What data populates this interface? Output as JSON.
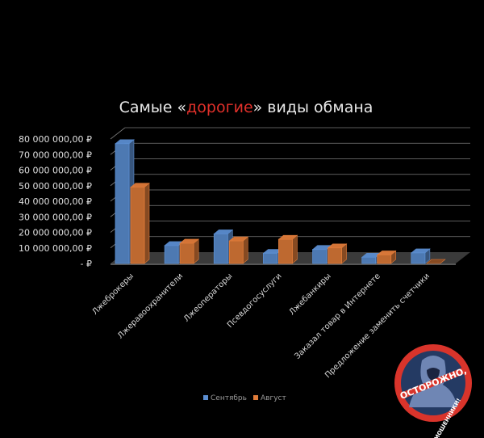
{
  "chart_data": {
    "type": "bar",
    "title": "Самые «дорогие» виды обмана",
    "title_parts": {
      "before": "Самые «",
      "highlight": "дорогие",
      "after": "» виды обмана"
    },
    "categories": [
      "Лжеброкеры",
      "Лжеравоохранители",
      "Лжеоператоры",
      "Псевдогосуслуги",
      "Лжебанкиры",
      "Заказал товар в Интернете",
      "Предложение заменить счетчики"
    ],
    "series": [
      {
        "name": "Сентябрь",
        "values": [
          77000000,
          11500000,
          19000000,
          6500000,
          9000000,
          4000000,
          6800000
        ]
      },
      {
        "name": "Август",
        "values": [
          49000000,
          13000000,
          14500000,
          15500000,
          10000000,
          5500000,
          0
        ]
      }
    ],
    "y_ticks": [
      "-  ₽",
      "10 000 000,00 ₽",
      "20 000 000,00 ₽",
      "30 000 000,00 ₽",
      "40 000 000,00 ₽",
      "50 000 000,00 ₽",
      "60 000 000,00 ₽",
      "70 000 000,00 ₽",
      "80 000 000,00 ₽"
    ],
    "ylim": [
      0,
      80000000
    ],
    "xlabel": "",
    "ylabel": "",
    "grid": true,
    "legend_position": "bottom",
    "colors": {
      "Сентябрь": "#5b8ed1",
      "Август": "#e07b39",
      "title_highlight": "#e0302a"
    }
  },
  "logo": {
    "text_top": "ОСТОРОЖНО,",
    "text_bottom": "МОШЕННИКИ!",
    "ring_color": "#d9342b"
  }
}
